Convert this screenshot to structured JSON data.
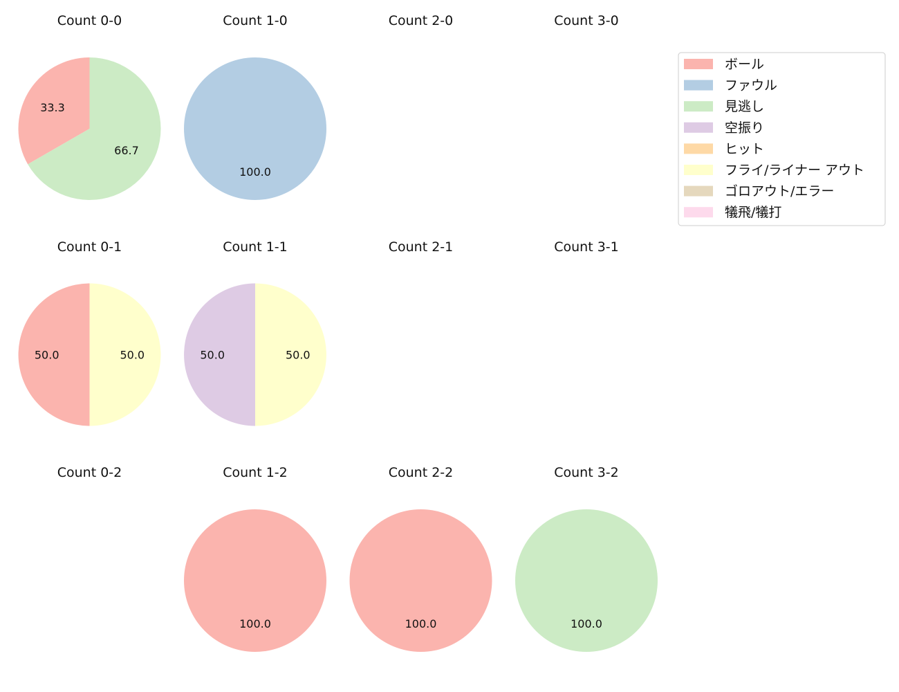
{
  "legend": [
    {
      "label": "ボール",
      "color": "#fbb4ae"
    },
    {
      "label": "ファウル",
      "color": "#b3cde3"
    },
    {
      "label": "見逃し",
      "color": "#ccebc5"
    },
    {
      "label": "空振り",
      "color": "#decbe4"
    },
    {
      "label": "ヒット",
      "color": "#fed9a6"
    },
    {
      "label": "フライ/ライナー アウト",
      "color": "#ffffcc"
    },
    {
      "label": "ゴロアウト/エラー",
      "color": "#e5d8bd"
    },
    {
      "label": "犠飛/犠打",
      "color": "#fddaec"
    }
  ],
  "chart_data": {
    "type": "pie",
    "legend_position": "top-right",
    "label_format": "percent, one decimal",
    "panels": [
      {
        "title": "Count 0-0",
        "slices": [
          {
            "category": "ボール",
            "value": 33.3
          },
          {
            "category": "見逃し",
            "value": 66.7
          }
        ]
      },
      {
        "title": "Count 1-0",
        "slices": [
          {
            "category": "ファウル",
            "value": 100.0
          }
        ]
      },
      {
        "title": "Count 2-0",
        "slices": []
      },
      {
        "title": "Count 3-0",
        "slices": []
      },
      {
        "title": "Count 0-1",
        "slices": [
          {
            "category": "ボール",
            "value": 50.0
          },
          {
            "category": "フライ/ライナー アウト",
            "value": 50.0
          }
        ]
      },
      {
        "title": "Count 1-1",
        "slices": [
          {
            "category": "空振り",
            "value": 50.0
          },
          {
            "category": "フライ/ライナー アウト",
            "value": 50.0
          }
        ]
      },
      {
        "title": "Count 2-1",
        "slices": []
      },
      {
        "title": "Count 3-1",
        "slices": []
      },
      {
        "title": "Count 0-2",
        "slices": []
      },
      {
        "title": "Count 1-2",
        "slices": [
          {
            "category": "ボール",
            "value": 100.0
          }
        ]
      },
      {
        "title": "Count 2-2",
        "slices": [
          {
            "category": "ボール",
            "value": 100.0
          }
        ]
      },
      {
        "title": "Count 3-2",
        "slices": [
          {
            "category": "見逃し",
            "value": 100.0
          }
        ]
      }
    ]
  }
}
